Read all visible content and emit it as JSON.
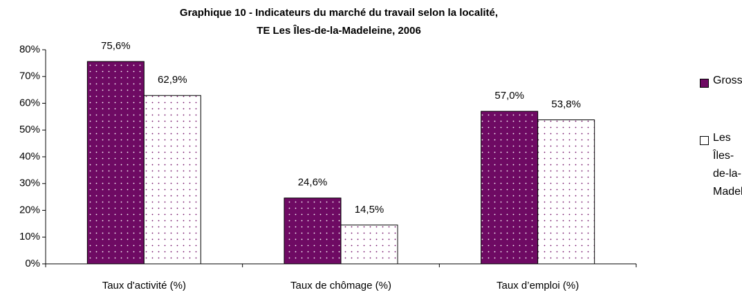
{
  "chart_data": {
    "type": "bar",
    "title": [
      "Graphique 10 - Indicateurs du marché du travail selon la localité,",
      "TE Les Îles-de-la-Madeleine, 2006"
    ],
    "categories": [
      "Taux d'activité (%)",
      "Taux de chômage (%)",
      "Taux d’emploi (%)"
    ],
    "series": [
      {
        "name": "Grosse-Île",
        "color": "#6e0a63",
        "values": [
          75.6,
          24.6,
          57.0
        ],
        "value_labels": [
          "75,6%",
          "24,6%",
          "57,0%"
        ]
      },
      {
        "name": "Les Îles-de-la-Madeleine",
        "color": "#ffffff",
        "values": [
          62.9,
          14.5,
          53.8
        ],
        "value_labels": [
          "62,9%",
          "14,5%",
          "53,8%"
        ]
      }
    ],
    "ylim": [
      0,
      80
    ],
    "yticks": [
      {
        "value": 0,
        "label": "0%"
      },
      {
        "value": 10,
        "label": "10%"
      },
      {
        "value": 20,
        "label": "20%"
      },
      {
        "value": 30,
        "label": "30%"
      },
      {
        "value": 40,
        "label": "40%"
      },
      {
        "value": 50,
        "label": "50%"
      },
      {
        "value": 60,
        "label": "60%"
      },
      {
        "value": 70,
        "label": "70%"
      },
      {
        "value": 80,
        "label": "80%"
      }
    ],
    "legend": "right"
  }
}
